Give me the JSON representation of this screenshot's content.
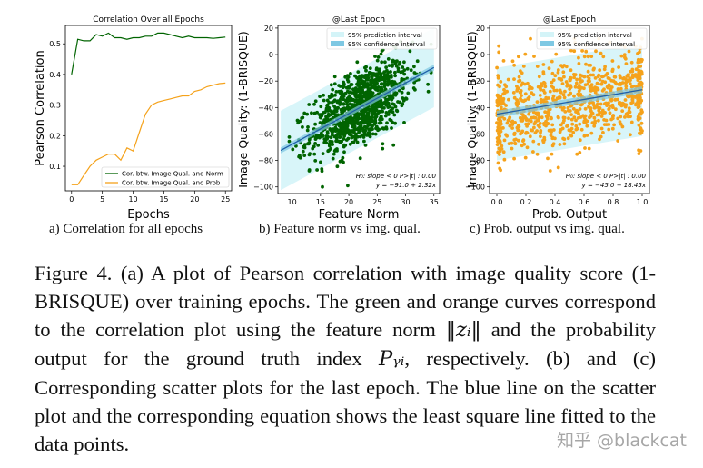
{
  "chart_data": [
    {
      "type": "line",
      "title": "Correlation Over all Epochs",
      "xlabel": "Epochs",
      "ylabel": "Pearson Correlation",
      "xlim": [
        -1,
        26
      ],
      "ylim": [
        0.02,
        0.56
      ],
      "xticks": [
        "0",
        "5",
        "10",
        "15",
        "20",
        "25"
      ],
      "yticks": [
        "0.1",
        "0.2",
        "0.3",
        "0.4",
        "0.5"
      ],
      "legend_position": "bottom-right",
      "x": [
        0,
        1,
        2,
        3,
        4,
        5,
        6,
        7,
        8,
        9,
        10,
        11,
        12,
        13,
        14,
        15,
        16,
        17,
        18,
        19,
        20,
        21,
        22,
        23,
        24,
        25
      ],
      "series": [
        {
          "name": "Cor. btw. Image Qual. and Norm",
          "color": "#006400",
          "values": [
            0.4,
            0.515,
            0.51,
            0.51,
            0.53,
            0.525,
            0.535,
            0.52,
            0.52,
            0.515,
            0.52,
            0.52,
            0.525,
            0.525,
            0.535,
            0.535,
            0.53,
            0.525,
            0.52,
            0.525,
            0.52,
            0.52,
            0.52,
            0.518,
            0.52,
            0.522
          ]
        },
        {
          "name": "Cor. btw. Image Qual. and Prob",
          "color": "#f5a21b",
          "values": [
            0.04,
            0.04,
            0.07,
            0.1,
            0.12,
            0.13,
            0.14,
            0.14,
            0.12,
            0.16,
            0.15,
            0.21,
            0.27,
            0.3,
            0.31,
            0.315,
            0.32,
            0.325,
            0.33,
            0.33,
            0.345,
            0.35,
            0.36,
            0.365,
            0.37,
            0.372
          ]
        }
      ]
    },
    {
      "type": "scatter",
      "title": "@Last Epoch",
      "xlabel": "Feature Norm",
      "ylabel": "Image Quality: (1-BRISQUE)",
      "xlim": [
        7.5,
        36
      ],
      "ylim": [
        -105,
        22
      ],
      "xticks": [
        "10",
        "15",
        "20",
        "25",
        "30",
        "35"
      ],
      "yticks": [
        "20",
        "0",
        "−20",
        "−40",
        "−60",
        "−80",
        "−100"
      ],
      "point_color": "#006400",
      "fit": {
        "intercept": -91.0,
        "slope": 2.32,
        "x_range": [
          8,
          35
        ]
      },
      "legend": [
        "95% prediction interval",
        "95% confidence interval"
      ],
      "annotation_1": "H₀: slope < 0   P>|t| : 0.00",
      "annotation_2": "y = −91.0 + 2.32x"
    },
    {
      "type": "scatter",
      "title": "@Last Epoch",
      "xlabel": "Prob. Output",
      "ylabel": "Image Quality: (1-BRISQUE)",
      "xlim": [
        -0.05,
        1.05
      ],
      "ylim": [
        -105,
        22
      ],
      "xticks": [
        "0.0",
        "0.2",
        "0.4",
        "0.6",
        "0.8",
        "1.0"
      ],
      "yticks": [
        "20",
        "0",
        "−20",
        "−40",
        "−60",
        "−80",
        "−100"
      ],
      "point_color": "#f5a21b",
      "fit": {
        "intercept": -45.0,
        "slope": 18.45,
        "x_range": [
          0.0,
          1.0
        ]
      },
      "legend": [
        "95% prediction interval",
        "95% confidence interval"
      ],
      "annotation_1": "H₀: slope < 0   P>|t| : 0.00",
      "annotation_2": "y = −45.0 + 18.45x"
    }
  ],
  "subcaptions": {
    "a": "a) Correlation for all epochs",
    "b": "b) Feature norm vs img. qual.",
    "c": "c) Prob. output vs img. qual."
  },
  "caption": {
    "p1": "Figure 4.  (a) A plot of Pearson correlation with image quality score (1-BRISQUE) over training epochs.  The green and orange curves correspond to the correlation plot using the feature norm ",
    "norm_symbol": "‖zᵢ‖",
    "p2": " and the probability output for the ground truth index ",
    "py_symbol": "Pᵧᵢ",
    "p3": ", respectively.  (b) and (c) Corresponding scatter plots for the last epoch.  The blue line on the scatter plot and the corresponding equation shows the least square line fitted to the data points."
  },
  "watermark": "知乎 @blackcat"
}
